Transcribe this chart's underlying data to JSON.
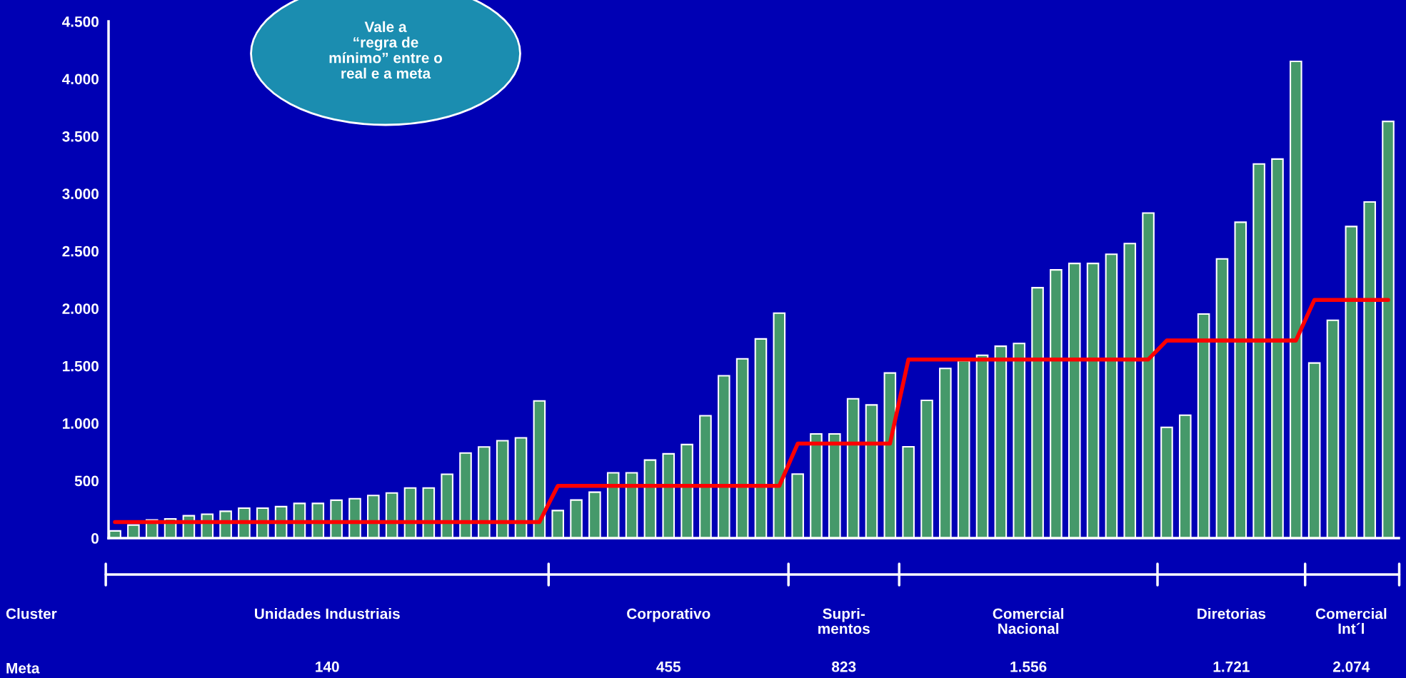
{
  "chart_data": {
    "type": "bar",
    "categories": [
      null,
      null,
      null,
      null,
      null,
      null,
      null,
      null,
      null,
      null,
      null,
      null,
      null,
      null,
      null,
      null,
      null,
      null,
      null,
      null,
      null,
      null,
      null,
      null,
      null,
      null,
      null,
      null,
      null,
      null,
      null,
      null,
      null,
      null,
      null,
      null,
      null,
      null,
      null,
      null,
      null,
      null,
      null,
      null,
      null,
      null,
      null,
      null,
      null,
      null,
      null,
      null,
      null,
      null,
      null,
      null,
      null,
      null,
      null,
      null,
      null,
      null,
      null,
      null,
      null,
      null,
      null,
      null,
      null,
      null
    ],
    "series": [
      {
        "color": "#45996a",
        "values": [
          63,
          114,
          158,
          168,
          195,
          208,
          234,
          261,
          261,
          274,
          302,
          302,
          330,
          343,
          371,
          393,
          437,
          437,
          556,
          741,
          794,
          848,
          873,
          1195,
          240,
          332,
          400,
          569,
          569,
          680,
          734,
          815,
          1066,
          1414,
          1562,
          1735,
          1959,
          558,
          907,
          907,
          1214,
          1160,
          1438,
          796,
          1200,
          1478,
          1545,
          1593,
          1671,
          1695,
          2181,
          2336,
          2392,
          2392,
          2472,
          2565,
          2831,
          965,
          1071,
          1952,
          2432,
          2751,
          3258,
          3301,
          4152,
          1525,
          1897,
          2714,
          2927,
          3629
        ]
      },
      {
        "type": "line",
        "color": "#ff0000",
        "values": [
          140,
          140,
          140,
          140,
          140,
          140,
          140,
          140,
          140,
          140,
          140,
          140,
          140,
          140,
          140,
          140,
          140,
          140,
          140,
          140,
          140,
          140,
          140,
          140,
          455,
          455,
          455,
          455,
          455,
          455,
          455,
          455,
          455,
          455,
          455,
          455,
          455,
          823,
          823,
          823,
          823,
          823,
          823,
          1556,
          1556,
          1556,
          1556,
          1556,
          1556,
          1556,
          1556,
          1556,
          1556,
          1556,
          1556,
          1556,
          1556,
          1721,
          1721,
          1721,
          1721,
          1721,
          1721,
          1721,
          1721,
          2074,
          2074,
          2074,
          2074,
          2074
        ]
      }
    ],
    "ylim": [
      0,
      4500
    ],
    "yticks": [
      0,
      500,
      {
        "value": 1000,
        "label": "1.000"
      },
      {
        "value": 1500,
        "label": "1.500"
      },
      {
        "value": 2000,
        "label": "2.000"
      },
      {
        "value": 2500,
        "label": "2.500"
      },
      {
        "value": 3000,
        "label": "3.000"
      },
      {
        "value": 3500,
        "label": "3.500"
      },
      {
        "value": 4000,
        "label": "4.000"
      },
      {
        "value": 4500,
        "label": "4.500"
      }
    ],
    "grid": false,
    "annotations": [
      "Vale a\n“regra de\nmínimo” entre o\nreal e a meta",
      "Cluster",
      "Unidades Industriais",
      "Corporativo",
      "Supri-\nmentos",
      "Comercial\nNacional",
      "Diretorias",
      "Comercial\nInt´l",
      "Meta",
      "140",
      "455",
      "823",
      "1.556",
      "1.721",
      "2.074"
    ]
  }
}
